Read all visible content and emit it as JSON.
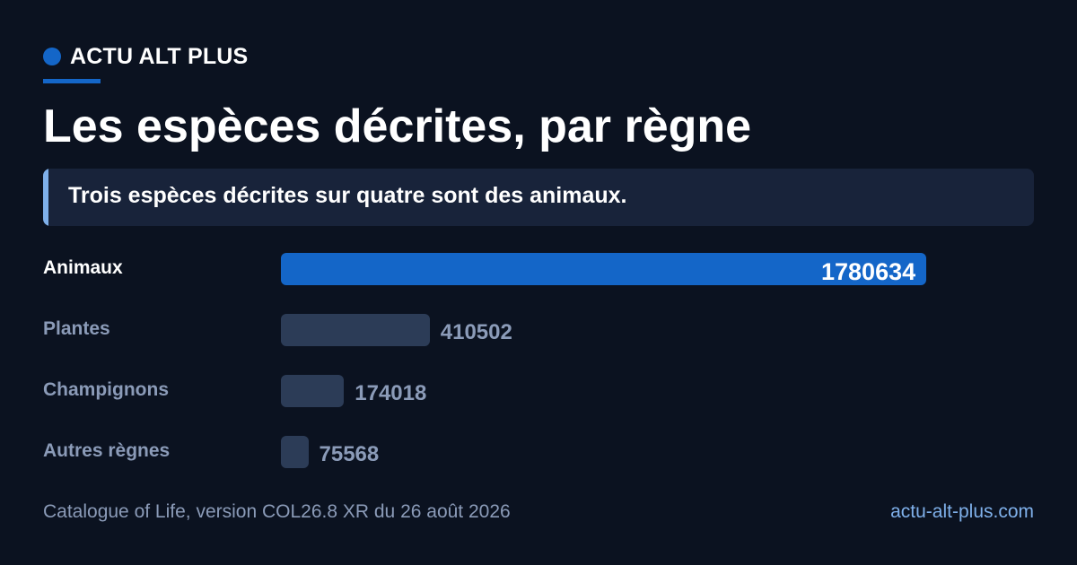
{
  "brand": {
    "name": "ACTU ALT PLUS",
    "accent_color": "#1466c8"
  },
  "title": "Les espèces décrites, par règne",
  "callout": {
    "text": "Trois espèces décrites sur quatre sont des animaux."
  },
  "chart_data": {
    "type": "bar",
    "orientation": "horizontal",
    "title": "Les espèces décrites, par règne",
    "categories": [
      "Animaux",
      "Plantes",
      "Champignons",
      "Autres règnes"
    ],
    "values": [
      1780634,
      410502,
      174018,
      75568
    ],
    "value_labels": [
      "1780634",
      "410502",
      "174018",
      "75568"
    ],
    "highlight_index": 0,
    "colors": {
      "highlight": "#1466c8",
      "default": "#2c3c57"
    },
    "xlim": [
      0,
      1780634
    ],
    "grid": false,
    "legend": "none"
  },
  "footer": {
    "source": "Catalogue of Life, version COL26.8 XR du 26 août 2026",
    "site": "actu-alt-plus.com"
  }
}
